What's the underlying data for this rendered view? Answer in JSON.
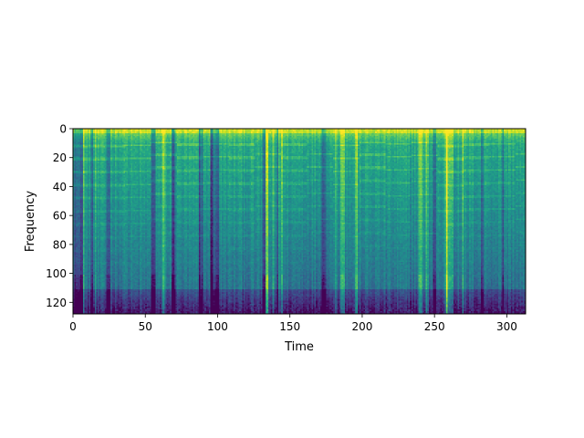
{
  "chart_data": {
    "type": "heatmap",
    "title": "",
    "xlabel": "Time",
    "ylabel": "Frequency",
    "xlim": [
      0,
      313
    ],
    "ylim": [
      128,
      0
    ],
    "y_axis_inverted": true,
    "xticks": [
      0,
      50,
      100,
      150,
      200,
      250,
      300
    ],
    "yticks": [
      0,
      20,
      40,
      60,
      80,
      100,
      120
    ],
    "grid": false,
    "colormap": "viridis",
    "rows": 128,
    "cols": 313,
    "description": "Spectrogram: bright energy concentrated in low frequency bins 0-10, horizontal harmonic bands roughly every 8-10 bins, darker high-frequency region below bin 110, with vertical dark/bright transient streaks across time."
  },
  "colors": {
    "viridis_low": "#440154",
    "viridis_mid": "#21918c",
    "viridis_high": "#fde725"
  }
}
